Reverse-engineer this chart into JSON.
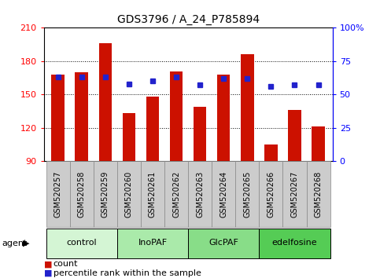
{
  "title": "GDS3796 / A_24_P785894",
  "samples": [
    "GSM520257",
    "GSM520258",
    "GSM520259",
    "GSM520260",
    "GSM520261",
    "GSM520262",
    "GSM520263",
    "GSM520264",
    "GSM520265",
    "GSM520266",
    "GSM520267",
    "GSM520268"
  ],
  "counts": [
    168,
    170,
    196,
    133,
    148,
    171,
    139,
    168,
    186,
    105,
    136,
    121
  ],
  "percentiles": [
    63,
    63,
    63,
    58,
    60,
    63,
    57,
    62,
    62,
    56,
    57,
    57
  ],
  "ymin": 90,
  "ymax": 210,
  "yticks": [
    90,
    120,
    150,
    180,
    210
  ],
  "y2ticks": [
    0,
    25,
    50,
    75,
    100
  ],
  "y2labels": [
    "0",
    "25",
    "50",
    "75",
    "100%"
  ],
  "groups": [
    {
      "label": "control",
      "start": 0,
      "end": 3,
      "color": "#d4f5d4"
    },
    {
      "label": "InoPAF",
      "start": 3,
      "end": 6,
      "color": "#aaeaaa"
    },
    {
      "label": "GlcPAF",
      "start": 6,
      "end": 9,
      "color": "#88dd88"
    },
    {
      "label": "edelfosine",
      "start": 9,
      "end": 12,
      "color": "#55cc55"
    }
  ],
  "bar_color": "#cc1100",
  "dot_color": "#2222cc",
  "bar_width": 0.55,
  "bg_color": "#ffffff",
  "plot_bg": "#ffffff",
  "title_fontsize": 10,
  "tick_fontsize": 7,
  "label_fontsize": 8,
  "legend_fontsize": 8
}
